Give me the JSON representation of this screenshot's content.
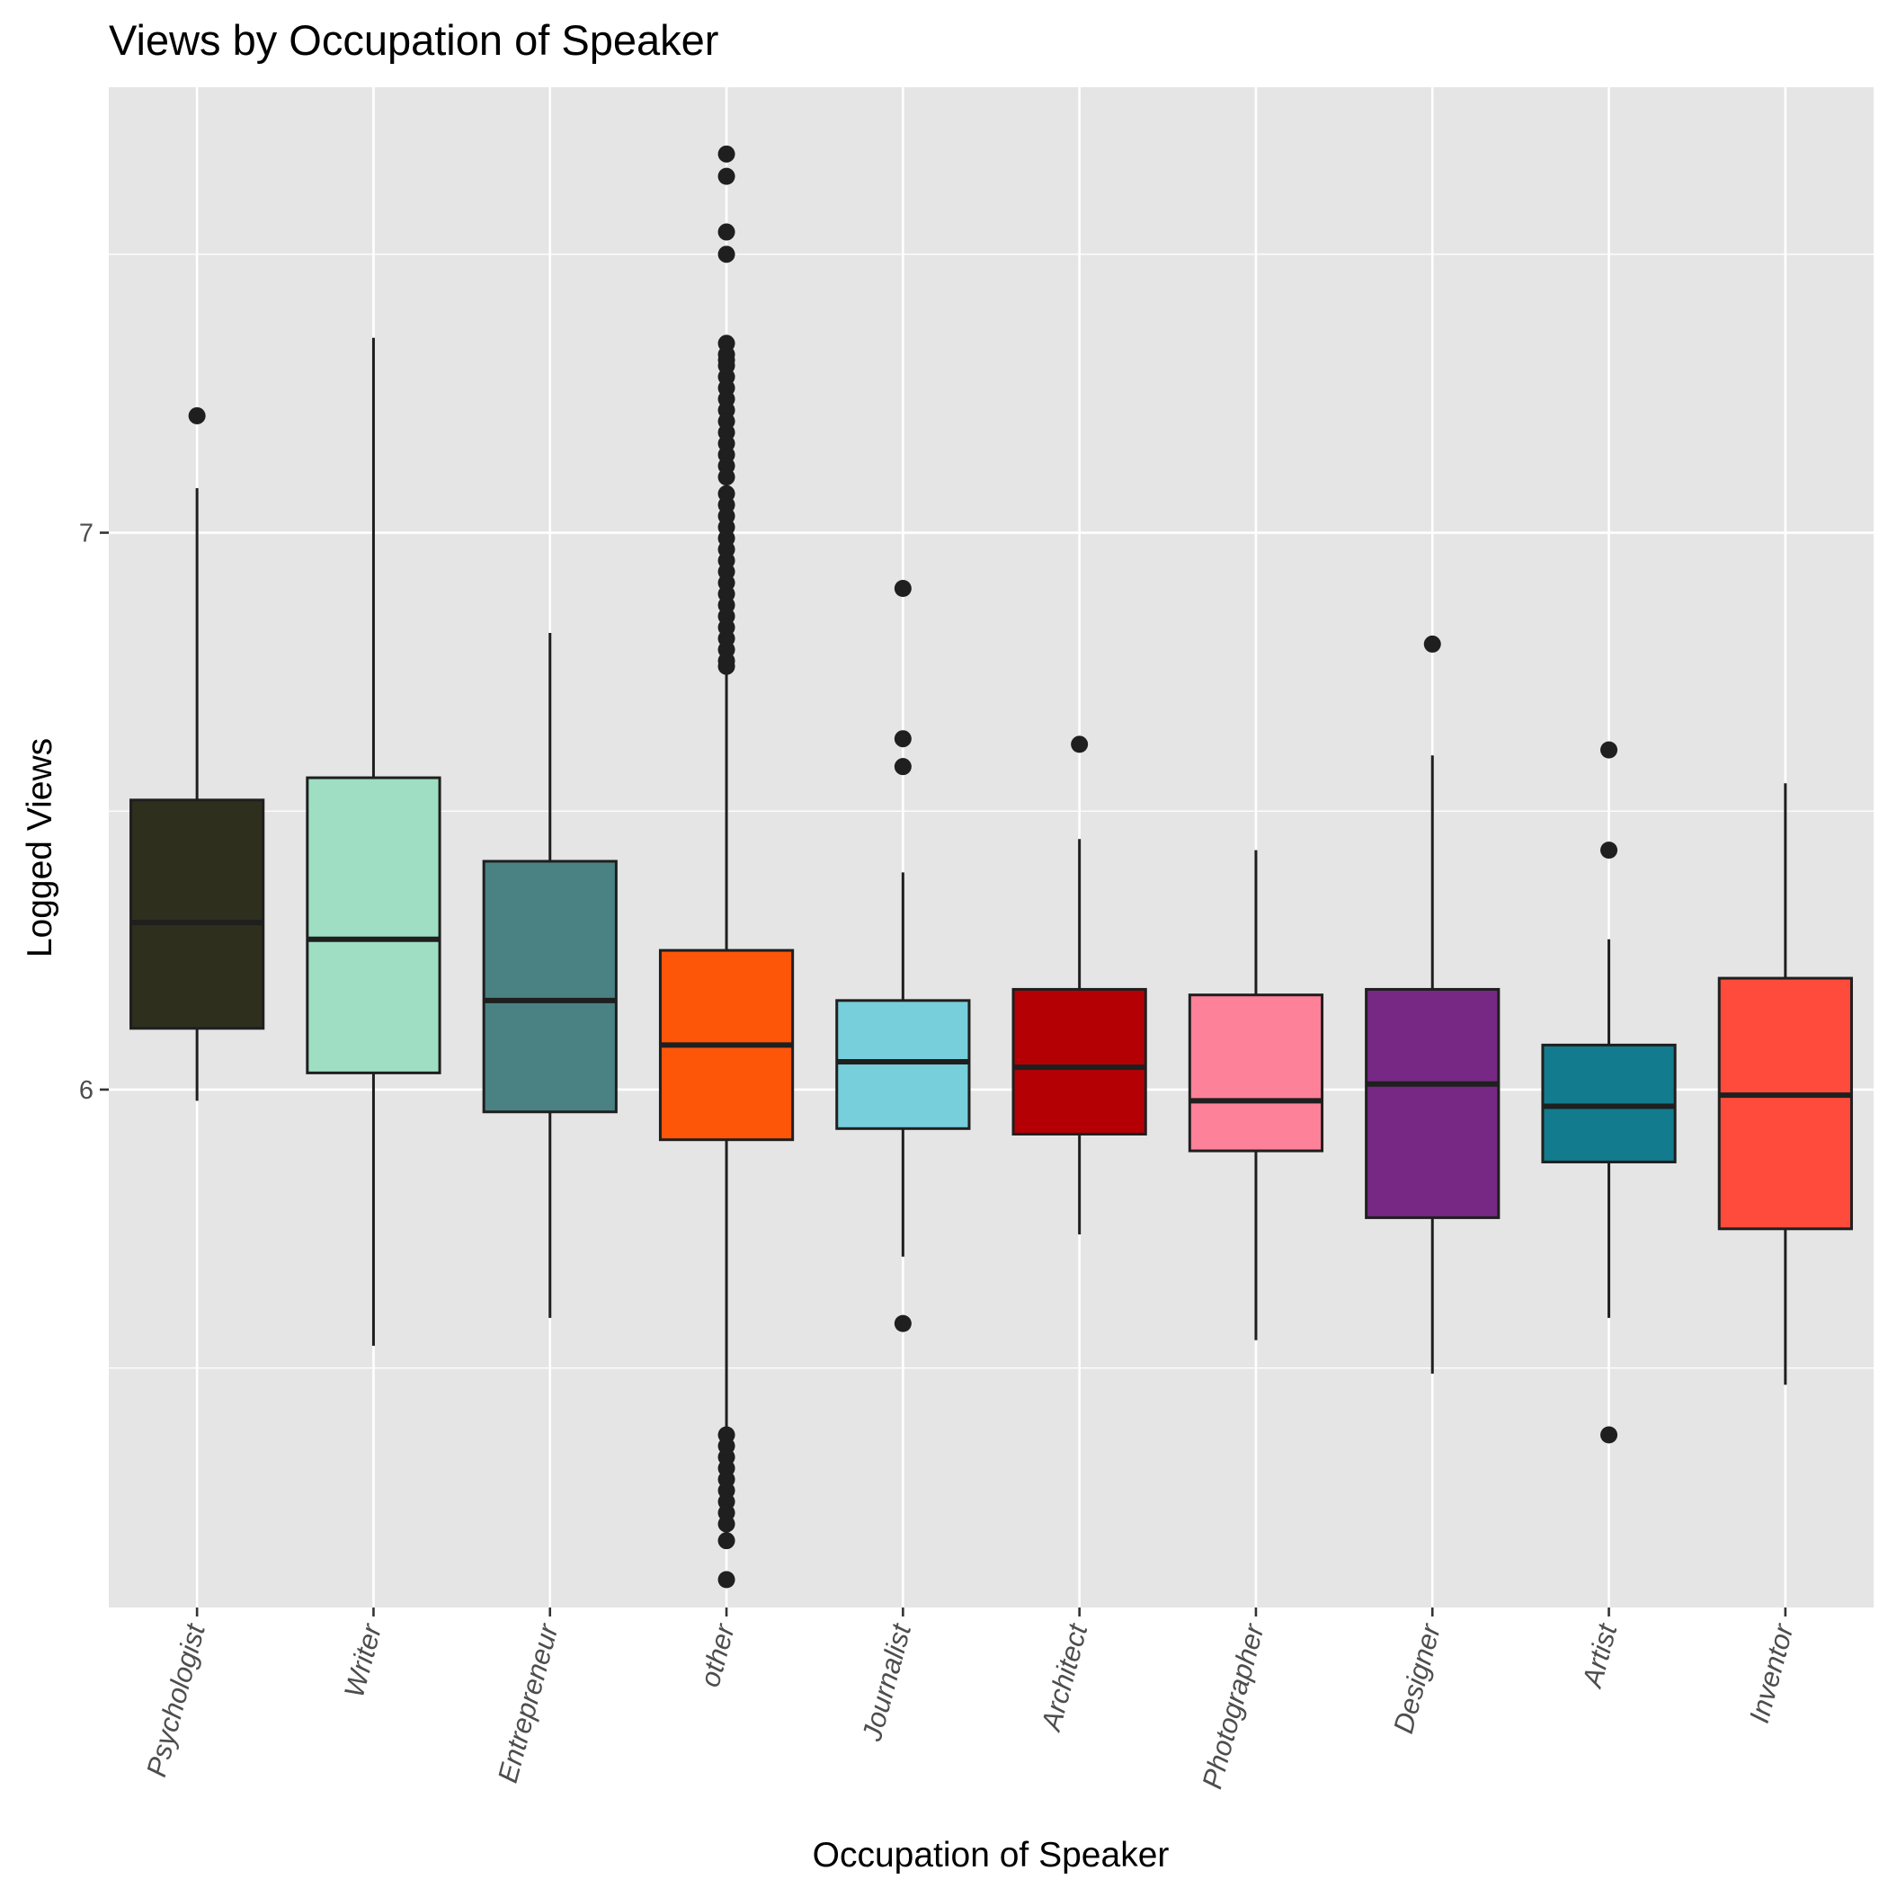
{
  "chart_data": {
    "type": "boxplot",
    "title": "Views by Occupation of Speaker",
    "xlabel": "Occupation of Speaker",
    "ylabel": "Logged Views",
    "ylim": [
      5.07,
      7.8
    ],
    "yticks": [
      6,
      7
    ],
    "grid": true,
    "legend": "none",
    "categories": [
      "Psychologist",
      "Writer",
      "Entrepreneur",
      "other",
      "Journalist",
      "Architect",
      "Photographer",
      "Designer",
      "Artist",
      "Inventor"
    ],
    "colors": [
      "#2f2f1e",
      "#9fdec3",
      "#4a8283",
      "#fe5609",
      "#77cfdc",
      "#b40005",
      "#fd8198",
      "#762884",
      "#127b8d",
      "#fe4b3c"
    ],
    "boxes": [
      {
        "q1": 6.11,
        "median": 6.3,
        "q3": 6.52,
        "whisker_low": 5.98,
        "whisker_high": 7.08,
        "outliers": [
          7.21
        ]
      },
      {
        "q1": 6.03,
        "median": 6.27,
        "q3": 6.56,
        "whisker_low": 5.54,
        "whisker_high": 7.35,
        "outliers": []
      },
      {
        "q1": 5.96,
        "median": 6.16,
        "q3": 6.41,
        "whisker_low": 5.59,
        "whisker_high": 6.82,
        "outliers": []
      },
      {
        "q1": 5.91,
        "median": 6.08,
        "q3": 6.25,
        "whisker_low": 5.39,
        "whisker_high": 6.77,
        "outliers": [
          7.68,
          7.64,
          7.54,
          7.5,
          7.34,
          7.32,
          7.31,
          7.3,
          7.28,
          7.26,
          7.24,
          7.22,
          7.2,
          7.18,
          7.16,
          7.14,
          7.12,
          7.1,
          7.07,
          7.05,
          7.03,
          7.01,
          6.99,
          6.97,
          6.95,
          6.93,
          6.91,
          6.89,
          6.87,
          6.85,
          6.83,
          6.81,
          6.79,
          6.77,
          6.76,
          5.38,
          5.36,
          5.34,
          5.32,
          5.3,
          5.28,
          5.26,
          5.24,
          5.22,
          5.19,
          5.12
        ]
      },
      {
        "q1": 5.93,
        "median": 6.05,
        "q3": 6.16,
        "whisker_low": 5.7,
        "whisker_high": 6.39,
        "outliers": [
          6.9,
          6.63,
          6.58,
          5.58
        ]
      },
      {
        "q1": 5.92,
        "median": 6.04,
        "q3": 6.18,
        "whisker_low": 5.74,
        "whisker_high": 6.45,
        "outliers": [
          6.62
        ]
      },
      {
        "q1": 5.89,
        "median": 5.98,
        "q3": 6.17,
        "whisker_low": 5.55,
        "whisker_high": 6.43,
        "outliers": []
      },
      {
        "q1": 5.77,
        "median": 6.01,
        "q3": 6.18,
        "whisker_low": 5.49,
        "whisker_high": 6.6,
        "outliers": [
          6.8
        ]
      },
      {
        "q1": 5.87,
        "median": 5.97,
        "q3": 6.08,
        "whisker_low": 5.59,
        "whisker_high": 6.27,
        "outliers": [
          6.61,
          6.43,
          5.38
        ]
      },
      {
        "q1": 5.75,
        "median": 5.99,
        "q3": 6.2,
        "whisker_low": 5.47,
        "whisker_high": 6.55,
        "outliers": []
      }
    ]
  }
}
